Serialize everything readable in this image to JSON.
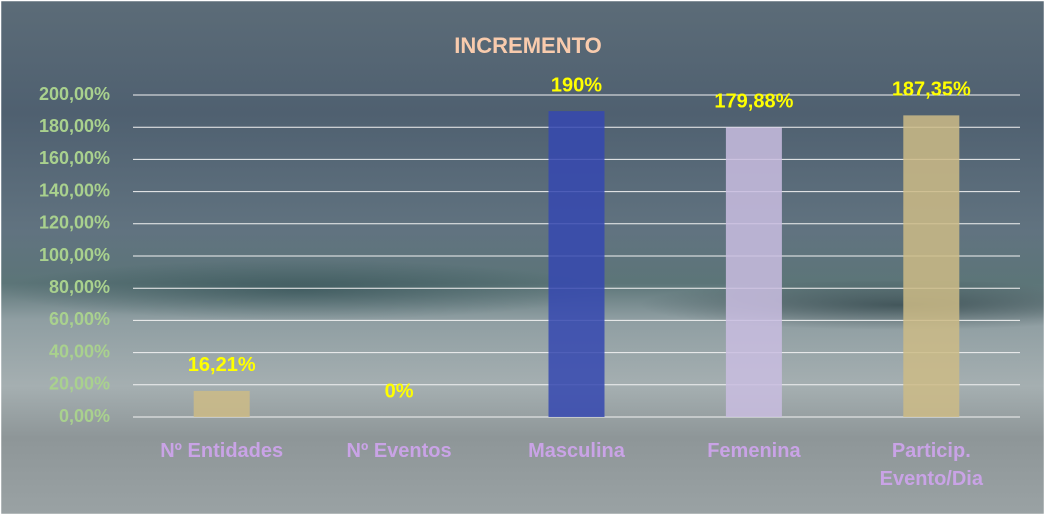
{
  "chart_data": {
    "type": "bar",
    "title": "INCREMENTO",
    "categories": [
      "Nº Entidades",
      "Nº Eventos",
      "Masculina",
      "Femenina",
      "Particip. Evento/Dia"
    ],
    "values": [
      16.21,
      0,
      190,
      179.88,
      187.35
    ],
    "value_labels": [
      "16,21%",
      "0%",
      "190%",
      "179,88%",
      "187,35%"
    ],
    "colors": [
      "#cdbb86",
      "#2fb0b8",
      "#3548b0",
      "#c9bde0"
    ],
    "ylim": [
      0,
      200
    ],
    "yticks": [
      {
        "value": 0,
        "label": "0,00%"
      },
      {
        "value": 20,
        "label": "20,00%"
      },
      {
        "value": 40,
        "label": "40,00%"
      },
      {
        "value": 60,
        "label": "60,00%"
      },
      {
        "value": 80,
        "label": "80,00%"
      },
      {
        "value": 100,
        "label": "100,00%"
      },
      {
        "value": 120,
        "label": "120,00%"
      },
      {
        "value": 140,
        "label": "140,00%"
      },
      {
        "value": 160,
        "label": "160,00%"
      },
      {
        "value": 180,
        "label": "180,00%"
      },
      {
        "value": 200,
        "label": "200,00%"
      }
    ],
    "grid": true
  }
}
